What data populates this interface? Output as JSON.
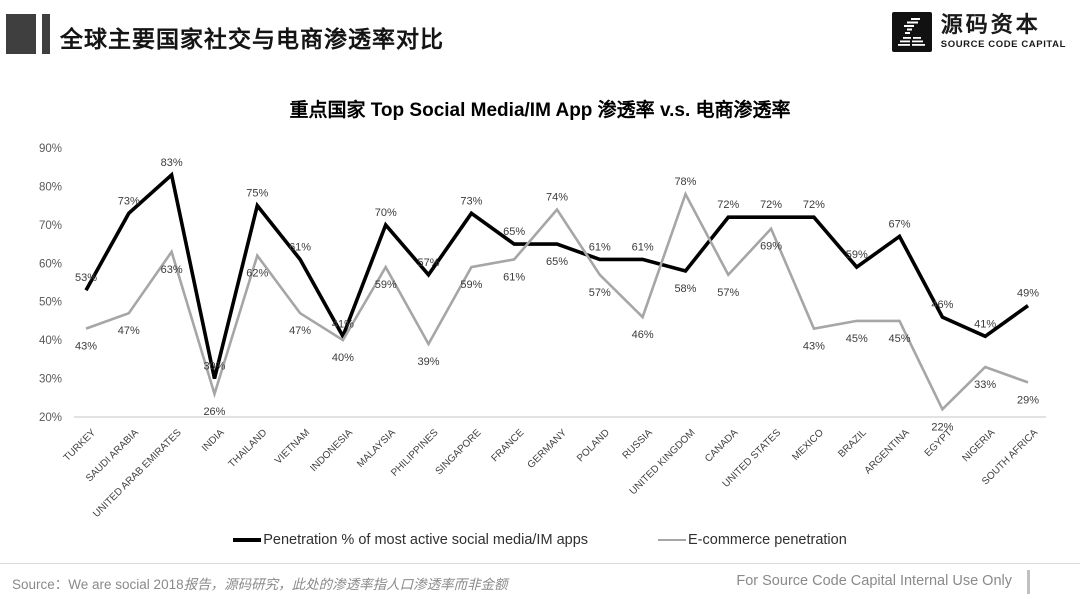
{
  "header": {
    "title": "全球主要国家社交与电商渗透率对比",
    "brand": {
      "name_cn": "源码资本",
      "name_en": "SOURCE CODE CAPITAL"
    }
  },
  "chart_data": {
    "type": "line",
    "title": "重点国家 Top Social Media/IM App 渗透率 v.s. 电商渗透率",
    "categories": [
      "TURKEY",
      "SAUDI ARABIA",
      "UNITED ARAB EMIRATES",
      "INDIA",
      "THAILAND",
      "VIETNAM",
      "INDONESIA",
      "MALAYSIA",
      "PHILIPPINES",
      "SINGAPORE",
      "FRANCE",
      "GERMANY",
      "POLAND",
      "RUSSIA",
      "UNITED KINGDOM",
      "CANADA",
      "UNITED STATES",
      "MEXICO",
      "BRAZIL",
      "ARGENTINA",
      "EGYPT",
      "NIGERIA",
      "SOUTH AFRICA"
    ],
    "series": [
      {
        "name": "Penetration % of most active social media/IM apps",
        "color": "#000000",
        "values": [
          53,
          73,
          83,
          30,
          75,
          61,
          41,
          70,
          57,
          73,
          65,
          65,
          61,
          61,
          58,
          72,
          72,
          72,
          59,
          67,
          46,
          41,
          49
        ]
      },
      {
        "name": "E-commerce penetration",
        "color": "#a6a6a6",
        "values": [
          43,
          47,
          63,
          26,
          62,
          47,
          40,
          59,
          39,
          59,
          61,
          74,
          57,
          46,
          78,
          57,
          69,
          43,
          45,
          45,
          22,
          33,
          29
        ]
      }
    ],
    "ylim": [
      20,
      90
    ],
    "ytick_step": 10,
    "value_suffix": "%",
    "grid": false,
    "legend_position": "bottom",
    "axis_line_color": "#d9d9d9",
    "label_color": "#3b3b3b"
  },
  "footer": {
    "source_prefix": "Source：We are social 2018",
    "source_cn": "报告，源码研究，此处的渗透率指人口渗透率而非金额",
    "right_note": "For Source Code Capital Internal Use Only"
  }
}
